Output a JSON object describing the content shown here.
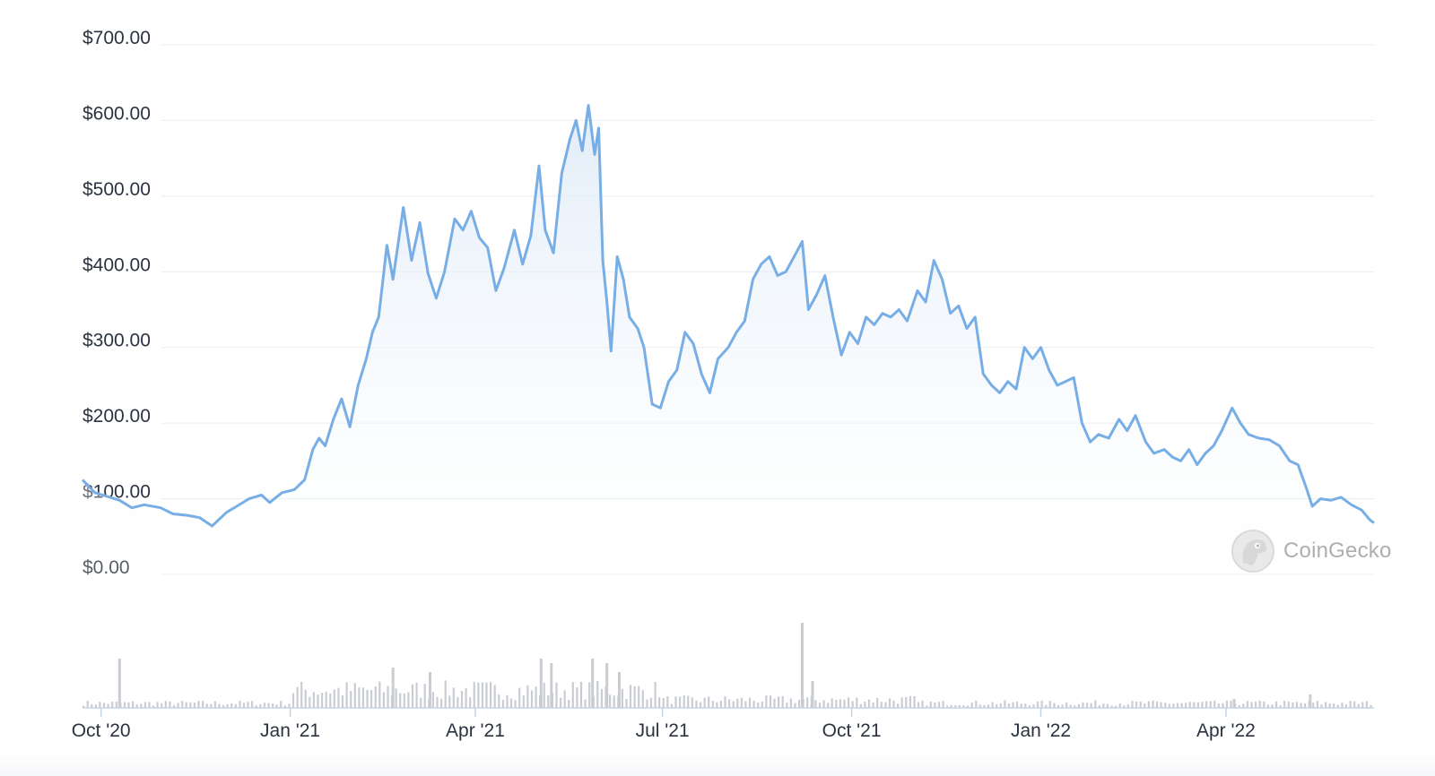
{
  "watermark": {
    "text": "CoinGecko",
    "icon": "gecko-logo-icon"
  },
  "colors": {
    "line": "#78aee6",
    "fill_top": "#dce9f7",
    "volume": "#c9ccd2",
    "grid": "#e9ecf1",
    "axis_text": "#2b3340"
  },
  "chart_data": {
    "type": "area",
    "title": "",
    "xlabel": "",
    "ylabel": "",
    "x_range": [
      "2020-09-22",
      "2022-06-12"
    ],
    "ylim": [
      0,
      700
    ],
    "y_ticks": [
      0,
      100,
      200,
      300,
      400,
      500,
      600,
      700
    ],
    "y_tick_labels": [
      "$0.00",
      "$100.00",
      "$200.00",
      "$300.00",
      "$400.00",
      "$500.00",
      "$600.00",
      "$700.00"
    ],
    "x_ticks": [
      "2020-10-01",
      "2021-01-01",
      "2021-04-01",
      "2021-07-01",
      "2021-10-01",
      "2022-01-01",
      "2022-04-01"
    ],
    "x_tick_labels": [
      "Oct '20",
      "Jan '21",
      "Apr '21",
      "Jul '21",
      "Oct '21",
      "Jan '22",
      "Apr '22"
    ],
    "grid": true,
    "series": [
      {
        "values": [
          [
            "2020-09-22",
            125
          ],
          [
            "2020-09-28",
            108
          ],
          [
            "2020-10-04",
            103
          ],
          [
            "2020-10-10",
            98
          ],
          [
            "2020-10-16",
            88
          ],
          [
            "2020-10-22",
            92
          ],
          [
            "2020-10-30",
            88
          ],
          [
            "2020-11-05",
            80
          ],
          [
            "2020-11-12",
            78
          ],
          [
            "2020-11-18",
            75
          ],
          [
            "2020-11-24",
            64
          ],
          [
            "2020-12-01",
            82
          ],
          [
            "2020-12-06",
            90
          ],
          [
            "2020-12-12",
            100
          ],
          [
            "2020-12-18",
            105
          ],
          [
            "2020-12-22",
            95
          ],
          [
            "2020-12-28",
            108
          ],
          [
            "2021-01-03",
            112
          ],
          [
            "2021-01-08",
            125
          ],
          [
            "2021-01-12",
            165
          ],
          [
            "2021-01-15",
            180
          ],
          [
            "2021-01-18",
            170
          ],
          [
            "2021-01-22",
            205
          ],
          [
            "2021-01-26",
            232
          ],
          [
            "2021-01-30",
            195
          ],
          [
            "2021-02-03",
            250
          ],
          [
            "2021-02-07",
            285
          ],
          [
            "2021-02-10",
            320
          ],
          [
            "2021-02-13",
            340
          ],
          [
            "2021-02-17",
            435
          ],
          [
            "2021-02-20",
            390
          ],
          [
            "2021-02-25",
            485
          ],
          [
            "2021-03-01",
            415
          ],
          [
            "2021-03-05",
            465
          ],
          [
            "2021-03-09",
            398
          ],
          [
            "2021-03-13",
            365
          ],
          [
            "2021-03-17",
            400
          ],
          [
            "2021-03-22",
            470
          ],
          [
            "2021-03-26",
            455
          ],
          [
            "2021-03-30",
            480
          ],
          [
            "2021-04-03",
            445
          ],
          [
            "2021-04-07",
            432
          ],
          [
            "2021-04-11",
            375
          ],
          [
            "2021-04-15",
            405
          ],
          [
            "2021-04-20",
            455
          ],
          [
            "2021-04-24",
            410
          ],
          [
            "2021-04-28",
            448
          ],
          [
            "2021-05-02",
            540
          ],
          [
            "2021-05-05",
            455
          ],
          [
            "2021-05-09",
            425
          ],
          [
            "2021-05-13",
            530
          ],
          [
            "2021-05-17",
            575
          ],
          [
            "2021-05-20",
            600
          ],
          [
            "2021-05-23",
            560
          ],
          [
            "2021-05-26",
            620
          ],
          [
            "2021-05-29",
            555
          ],
          [
            "2021-05-31",
            590
          ],
          [
            "2021-06-02",
            415
          ],
          [
            "2021-06-04",
            360
          ],
          [
            "2021-06-06",
            295
          ],
          [
            "2021-06-09",
            420
          ],
          [
            "2021-06-12",
            390
          ],
          [
            "2021-06-15",
            340
          ],
          [
            "2021-06-19",
            325
          ],
          [
            "2021-06-22",
            300
          ],
          [
            "2021-06-26",
            225
          ],
          [
            "2021-06-30",
            220
          ],
          [
            "2021-07-04",
            255
          ],
          [
            "2021-07-08",
            270
          ],
          [
            "2021-07-12",
            320
          ],
          [
            "2021-07-16",
            305
          ],
          [
            "2021-07-20",
            265
          ],
          [
            "2021-07-24",
            240
          ],
          [
            "2021-07-28",
            285
          ],
          [
            "2021-08-02",
            300
          ],
          [
            "2021-08-06",
            320
          ],
          [
            "2021-08-10",
            335
          ],
          [
            "2021-08-14",
            390
          ],
          [
            "2021-08-18",
            410
          ],
          [
            "2021-08-22",
            420
          ],
          [
            "2021-08-26",
            395
          ],
          [
            "2021-08-30",
            400
          ],
          [
            "2021-09-03",
            420
          ],
          [
            "2021-09-07",
            440
          ],
          [
            "2021-09-10",
            350
          ],
          [
            "2021-09-14",
            370
          ],
          [
            "2021-09-18",
            395
          ],
          [
            "2021-09-22",
            340
          ],
          [
            "2021-09-26",
            290
          ],
          [
            "2021-09-30",
            320
          ],
          [
            "2021-10-04",
            305
          ],
          [
            "2021-10-08",
            340
          ],
          [
            "2021-10-12",
            330
          ],
          [
            "2021-10-16",
            345
          ],
          [
            "2021-10-20",
            340
          ],
          [
            "2021-10-24",
            350
          ],
          [
            "2021-10-28",
            335
          ],
          [
            "2021-11-02",
            375
          ],
          [
            "2021-11-06",
            360
          ],
          [
            "2021-11-10",
            415
          ],
          [
            "2021-11-14",
            390
          ],
          [
            "2021-11-18",
            345
          ],
          [
            "2021-11-22",
            355
          ],
          [
            "2021-11-26",
            325
          ],
          [
            "2021-11-30",
            340
          ],
          [
            "2021-12-04",
            265
          ],
          [
            "2021-12-08",
            250
          ],
          [
            "2021-12-12",
            240
          ],
          [
            "2021-12-16",
            255
          ],
          [
            "2021-12-20",
            245
          ],
          [
            "2021-12-24",
            300
          ],
          [
            "2021-12-28",
            285
          ],
          [
            "2022-01-01",
            300
          ],
          [
            "2022-01-05",
            270
          ],
          [
            "2022-01-09",
            250
          ],
          [
            "2022-01-13",
            255
          ],
          [
            "2022-01-17",
            260
          ],
          [
            "2022-01-21",
            200
          ],
          [
            "2022-01-25",
            175
          ],
          [
            "2022-01-29",
            185
          ],
          [
            "2022-02-03",
            180
          ],
          [
            "2022-02-08",
            205
          ],
          [
            "2022-02-12",
            190
          ],
          [
            "2022-02-16",
            210
          ],
          [
            "2022-02-21",
            175
          ],
          [
            "2022-02-25",
            160
          ],
          [
            "2022-03-02",
            165
          ],
          [
            "2022-03-06",
            155
          ],
          [
            "2022-03-10",
            150
          ],
          [
            "2022-03-14",
            165
          ],
          [
            "2022-03-18",
            145
          ],
          [
            "2022-03-22",
            160
          ],
          [
            "2022-03-26",
            170
          ],
          [
            "2022-03-30",
            190
          ],
          [
            "2022-04-04",
            220
          ],
          [
            "2022-04-08",
            200
          ],
          [
            "2022-04-12",
            185
          ],
          [
            "2022-04-17",
            180
          ],
          [
            "2022-04-22",
            178
          ],
          [
            "2022-04-27",
            170
          ],
          [
            "2022-05-02",
            150
          ],
          [
            "2022-05-06",
            145
          ],
          [
            "2022-05-10",
            115
          ],
          [
            "2022-05-13",
            90
          ],
          [
            "2022-05-17",
            100
          ],
          [
            "2022-05-22",
            98
          ],
          [
            "2022-05-27",
            102
          ],
          [
            "2022-06-01",
            92
          ],
          [
            "2022-06-06",
            85
          ],
          [
            "2022-06-10",
            72
          ],
          [
            "2022-06-12",
            68
          ]
        ]
      }
    ],
    "volume_bars": [
      [
        "2020-10-10",
        0.55
      ],
      [
        "2021-02-20",
        0.45
      ],
      [
        "2021-03-10",
        0.4
      ],
      [
        "2021-05-03",
        0.55
      ],
      [
        "2021-05-08",
        0.5
      ],
      [
        "2021-05-28",
        0.55
      ],
      [
        "2021-06-04",
        0.5
      ],
      [
        "2021-06-10",
        0.4
      ],
      [
        "2021-09-07",
        0.95
      ],
      [
        "2021-09-12",
        0.3
      ],
      [
        "2022-04-05",
        0.1
      ],
      [
        "2022-05-12",
        0.15
      ]
    ]
  }
}
